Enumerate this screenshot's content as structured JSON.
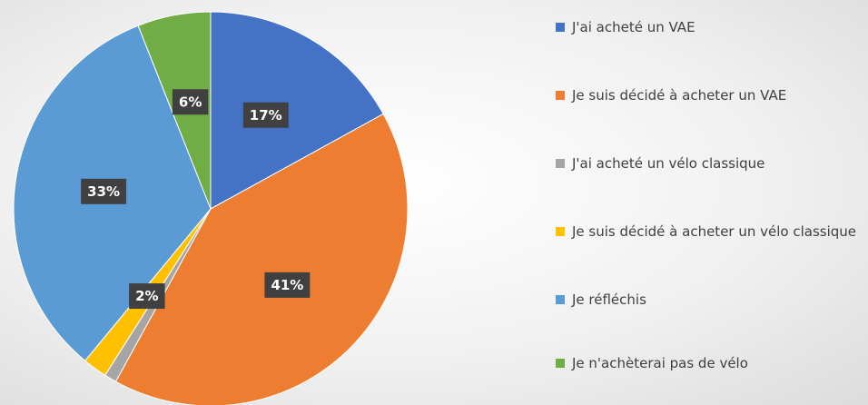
{
  "chart_data": {
    "type": "pie",
    "categories": [
      "J'ai acheté un VAE",
      "Je suis décidé à acheter un VAE",
      "J'ai acheté un vélo classique",
      "Je suis décidé à acheter un vélo classique",
      "Je réfléchis",
      "Je n'achèterai pas de vélo"
    ],
    "values": [
      17,
      41,
      1,
      2,
      33,
      6
    ],
    "value_labels": [
      "17%",
      "41%",
      null,
      "2%",
      "33%",
      "6%"
    ],
    "colors": [
      "#4472c4",
      "#ed7d31",
      "#a5a5a5",
      "#ffc000",
      "#5b9bd5",
      "#70ad47"
    ],
    "legend": "right"
  }
}
